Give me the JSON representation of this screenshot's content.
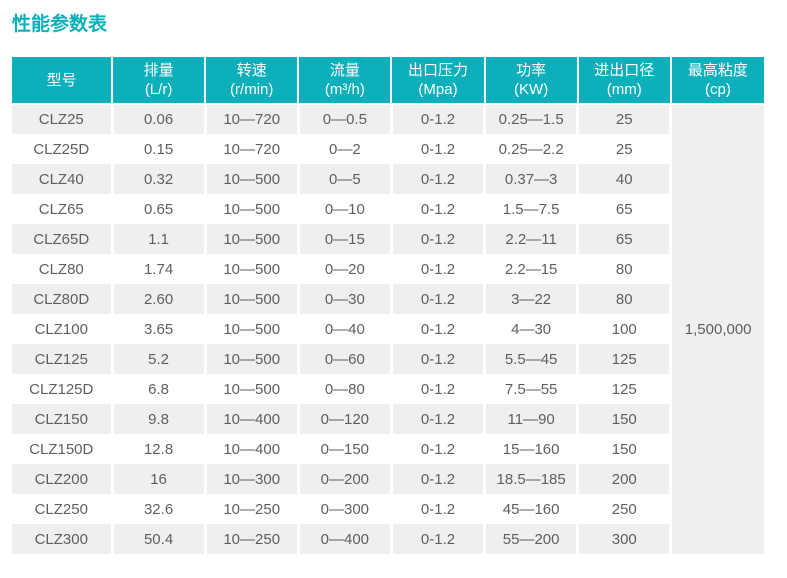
{
  "title": "性能参数表",
  "colors": {
    "accent_teal": "#0db0ba",
    "row_alt_gray": "#efefef",
    "header_text": "#ffffff",
    "body_text": "#5f5f5f"
  },
  "table": {
    "headers": [
      {
        "key": "model",
        "name": "型号",
        "unit": ""
      },
      {
        "key": "displacement",
        "name": "排量",
        "unit": "(L/r)"
      },
      {
        "key": "speed",
        "name": "转速",
        "unit": "(r/min)"
      },
      {
        "key": "flow",
        "name": "流量",
        "unit": "(m³/h)"
      },
      {
        "key": "outlet-pressure",
        "name": "出口压力",
        "unit": "(Mpa)"
      },
      {
        "key": "power",
        "name": "功率",
        "unit": "(KW)"
      },
      {
        "key": "port-diameter",
        "name": "进出口径",
        "unit": "(mm)"
      },
      {
        "key": "max-viscosity",
        "name": "最高粘度",
        "unit": "(cp)"
      }
    ],
    "rows": [
      [
        "CLZ25",
        "0.06",
        "10—720",
        "0—0.5",
        "0-1.2",
        "0.25—1.5",
        "25"
      ],
      [
        "CLZ25D",
        "0.15",
        "10—720",
        "0—2",
        "0-1.2",
        "0.25—2.2",
        "25"
      ],
      [
        "CLZ40",
        "0.32",
        "10—500",
        "0—5",
        "0-1.2",
        "0.37—3",
        "40"
      ],
      [
        "CLZ65",
        "0.65",
        "10—500",
        "0—10",
        "0-1.2",
        "1.5—7.5",
        "65"
      ],
      [
        "CLZ65D",
        "1.1",
        "10—500",
        "0—15",
        "0-1.2",
        "2.2—11",
        "65"
      ],
      [
        "CLZ80",
        "1.74",
        "10—500",
        "0—20",
        "0-1.2",
        "2.2—15",
        "80"
      ],
      [
        "CLZ80D",
        "2.60",
        "10—500",
        "0—30",
        "0-1.2",
        "3—22",
        "80"
      ],
      [
        "CLZ100",
        "3.65",
        "10—500",
        "0—40",
        "0-1.2",
        "4—30",
        "100"
      ],
      [
        "CLZ125",
        "5.2",
        "10—500",
        "0—60",
        "0-1.2",
        "5.5—45",
        "125"
      ],
      [
        "CLZ125D",
        "6.8",
        "10—500",
        "0—80",
        "0-1.2",
        "7.5—55",
        "125"
      ],
      [
        "CLZ150",
        "9.8",
        "10—400",
        "0—120",
        "0-1.2",
        "11—90",
        "150"
      ],
      [
        "CLZ150D",
        "12.8",
        "10—400",
        "0—150",
        "0-1.2",
        "15—160",
        "150"
      ],
      [
        "CLZ200",
        "16",
        "10—300",
        "0—200",
        "0-1.2",
        "18.5—185",
        "200"
      ],
      [
        "CLZ250",
        "32.6",
        "10—250",
        "0—300",
        "0-1.2",
        "45—160",
        "250"
      ],
      [
        "CLZ300",
        "50.4",
        "10—250",
        "0—400",
        "0-1.2",
        "55—200",
        "300"
      ]
    ],
    "max_viscosity_merged_value": "1,500,000"
  }
}
